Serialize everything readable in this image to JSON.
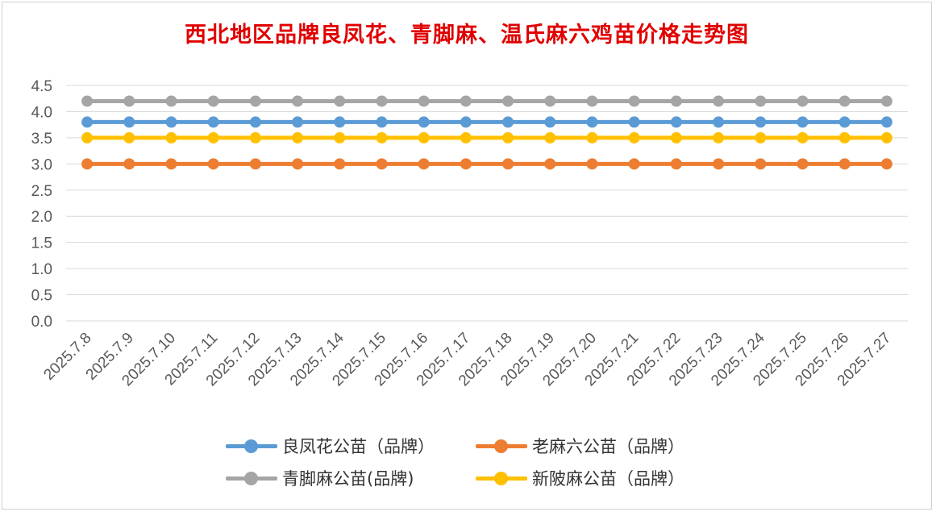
{
  "chart_data": {
    "type": "line",
    "title": "西北地区品牌良凤花、青脚麻、温氏麻六鸡苗价格走势图",
    "categories": [
      "2025.7.8",
      "2025.7.9",
      "2025.7.10",
      "2025.7.11",
      "2025.7.12",
      "2025.7.13",
      "2025.7.14",
      "2025.7.15",
      "2025.7.16",
      "2025.7.17",
      "2025.7.18",
      "2025.7.19",
      "2025.7.20",
      "2025.7.21",
      "2025.7.22",
      "2025.7.23",
      "2025.7.24",
      "2025.7.25",
      "2025.7.26",
      "2025.7.27"
    ],
    "ylim": [
      0,
      4.5
    ],
    "yticks": [
      "0.0",
      "0.5",
      "1.0",
      "1.5",
      "2.0",
      "2.5",
      "3.0",
      "3.5",
      "4.0",
      "4.5"
    ],
    "grid": true,
    "legend_position": "bottom",
    "series": [
      {
        "name": "良凤花公苗（品牌）",
        "color": "#5b9bd5",
        "values": [
          3.8,
          3.8,
          3.8,
          3.8,
          3.8,
          3.8,
          3.8,
          3.8,
          3.8,
          3.8,
          3.8,
          3.8,
          3.8,
          3.8,
          3.8,
          3.8,
          3.8,
          3.8,
          3.8,
          3.8
        ]
      },
      {
        "name": "老麻六公苗（品牌）",
        "color": "#ed7d31",
        "values": [
          3.0,
          3.0,
          3.0,
          3.0,
          3.0,
          3.0,
          3.0,
          3.0,
          3.0,
          3.0,
          3.0,
          3.0,
          3.0,
          3.0,
          3.0,
          3.0,
          3.0,
          3.0,
          3.0,
          3.0
        ]
      },
      {
        "name": "青脚麻公苗(品牌)",
        "color": "#a5a5a5",
        "values": [
          4.2,
          4.2,
          4.2,
          4.2,
          4.2,
          4.2,
          4.2,
          4.2,
          4.2,
          4.2,
          4.2,
          4.2,
          4.2,
          4.2,
          4.2,
          4.2,
          4.2,
          4.2,
          4.2,
          4.2
        ]
      },
      {
        "name": "新陂麻公苗（品牌）",
        "color": "#ffc000",
        "values": [
          3.5,
          3.5,
          3.5,
          3.5,
          3.5,
          3.5,
          3.5,
          3.5,
          3.5,
          3.5,
          3.5,
          3.5,
          3.5,
          3.5,
          3.5,
          3.5,
          3.5,
          3.5,
          3.5,
          3.5
        ]
      }
    ],
    "draw_order": [
      2,
      0,
      3,
      1
    ]
  }
}
